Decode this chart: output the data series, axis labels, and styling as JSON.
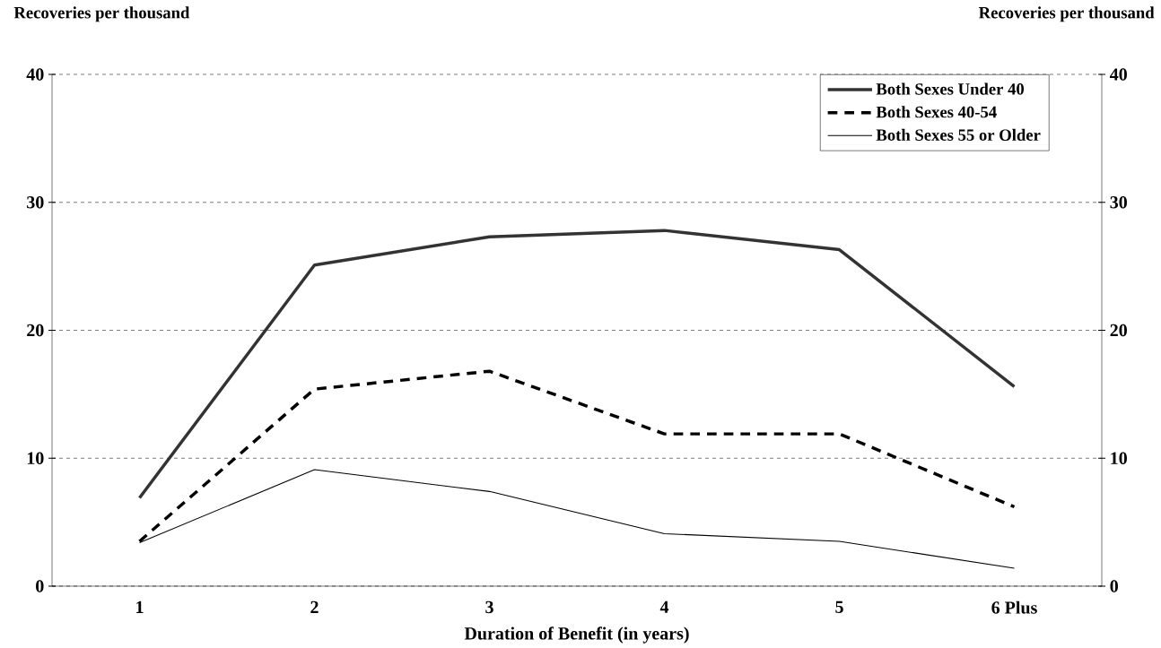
{
  "chart_data": {
    "type": "line",
    "xlabel": "Duration of Benefit (in years)",
    "ylabel": "Recoveries per thousand",
    "y2label": "Recoveries per thousand",
    "categories": [
      "1",
      "2",
      "3",
      "4",
      "5",
      "6 Plus"
    ],
    "series": [
      {
        "name": "Both Sexes Under 40",
        "color": "#333333",
        "line_style": "solid",
        "values": [
          6.9,
          25.1,
          27.3,
          27.8,
          26.3,
          15.6
        ]
      },
      {
        "name": "Both Sexes 40-54",
        "color": "#000000",
        "line_style": "dashed",
        "values": [
          3.5,
          15.4,
          16.8,
          11.9,
          11.9,
          6.2
        ]
      },
      {
        "name": "Both Sexes 55 or Older",
        "color": "#000000",
        "line_style": "solid",
        "values": [
          3.4,
          9.1,
          7.4,
          4.1,
          3.5,
          1.4
        ]
      }
    ],
    "ylim": [
      0,
      40
    ],
    "yticks": [
      0,
      10,
      20,
      30,
      40
    ],
    "y2lim": [
      0,
      40
    ],
    "y2ticks": [
      0,
      10,
      20,
      30,
      40
    ],
    "grid": "y",
    "legend": "top right",
    "marker": "none"
  }
}
